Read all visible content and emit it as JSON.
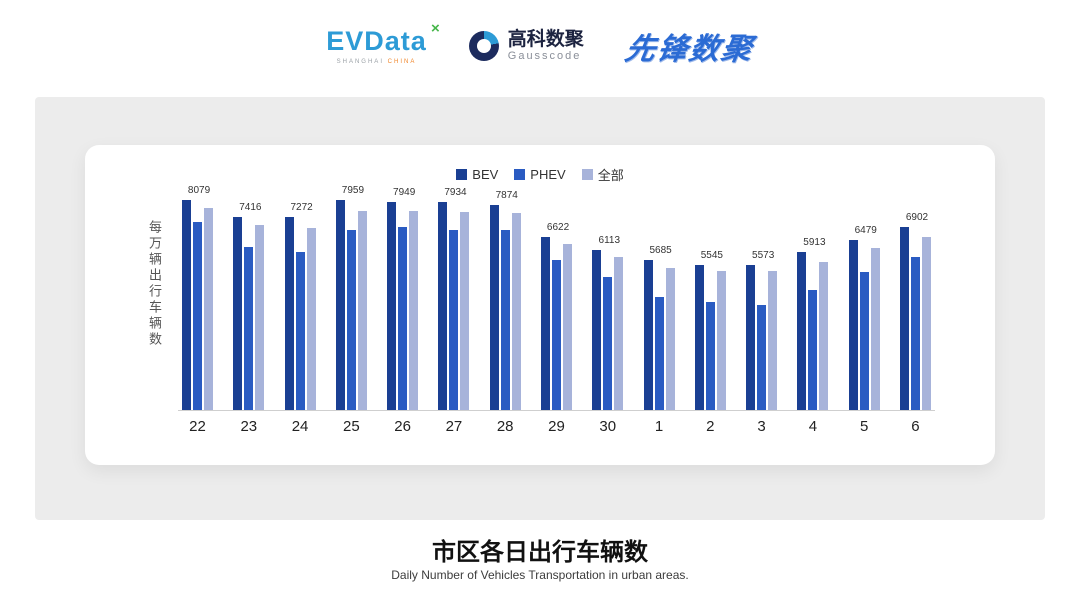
{
  "header": {
    "evdata": {
      "name": "EVData",
      "sup": "×",
      "sub_shanghai": "SHANGHAI",
      "sub_china": "CHINA"
    },
    "gausscode": {
      "cn": "高科数聚",
      "en": "Gausscode"
    },
    "pioneer": "先锋数聚"
  },
  "chart": {
    "ylabel": "每万辆出行车辆数",
    "legend": [
      "BEV",
      "PHEV",
      "全部"
    ],
    "colors": {
      "BEV": "#1a3f93",
      "PHEV": "#2a5bc2",
      "全部": "#a7b3da"
    }
  },
  "chart_data": {
    "type": "bar",
    "categories": [
      "22",
      "23",
      "24",
      "25",
      "26",
      "27",
      "28",
      "29",
      "30",
      "1",
      "2",
      "3",
      "4",
      "5",
      "6"
    ],
    "series": [
      {
        "name": "BEV",
        "values": [
          8400,
          7700,
          7700,
          8400,
          8300,
          8300,
          8200,
          6900,
          6400,
          6000,
          5800,
          5800,
          6300,
          6800,
          7300
        ]
      },
      {
        "name": "PHEV",
        "values": [
          7500,
          6500,
          6300,
          7200,
          7300,
          7200,
          7200,
          6000,
          5300,
          4500,
          4300,
          4200,
          4800,
          5500,
          6100
        ]
      },
      {
        "name": "全部",
        "values": [
          8079,
          7416,
          7272,
          7959,
          7949,
          7934,
          7874,
          6622,
          6113,
          5685,
          5545,
          5573,
          5913,
          6479,
          6902
        ]
      }
    ],
    "labels": [
      8079,
      7416,
      7272,
      7959,
      7949,
      7934,
      7874,
      6622,
      6113,
      5685,
      5545,
      5573,
      5913,
      6479,
      6902
    ],
    "title": "市区各日出行车辆数",
    "xlabel": "",
    "ylabel": "每万辆出行车辆数",
    "ylim": [
      0,
      8600
    ],
    "grid": false,
    "legend_position": "top"
  },
  "footer": {
    "title": "市区各日出行车辆数",
    "subtitle": "Daily Number of Vehicles Transportation in urban areas."
  }
}
